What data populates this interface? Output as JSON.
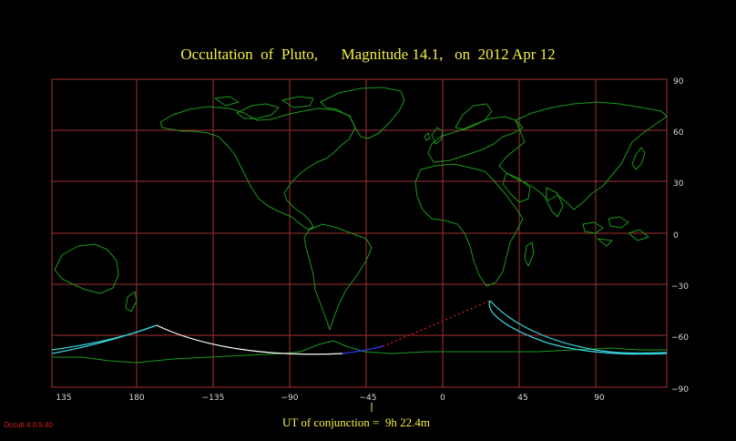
{
  "title": "Occultation  of  Pluto,      Magnitude 14.1,   on  2012 Apr 12",
  "conjunction_label": "UT of conjunction =  9h 22.4m",
  "version": "Occult 4.0.9.40",
  "colors": {
    "background": "#000000",
    "grid": "#a83030",
    "coast": "#1a9a1a",
    "title": "#f5f044",
    "centerline": "#ffffff",
    "centerline_night": "#2a3aff",
    "centerline_dotted": "#e02020",
    "limit_lines": "#3ad8e0",
    "ticks": "#d8d8d8"
  },
  "map": {
    "projection": "equirectangular",
    "center_longitude": 0,
    "lon_labels": [
      "135",
      "180",
      "−135",
      "−90",
      "−45",
      "0",
      "45",
      "90"
    ],
    "lon_values": [
      135,
      180,
      -135,
      -90,
      -45,
      0,
      45,
      90
    ],
    "lat_labels": [
      "90",
      "60",
      "30",
      "0",
      "−30",
      "−60",
      "−90"
    ],
    "lat_values": [
      90,
      60,
      30,
      0,
      -30,
      -60,
      -90
    ]
  }
}
